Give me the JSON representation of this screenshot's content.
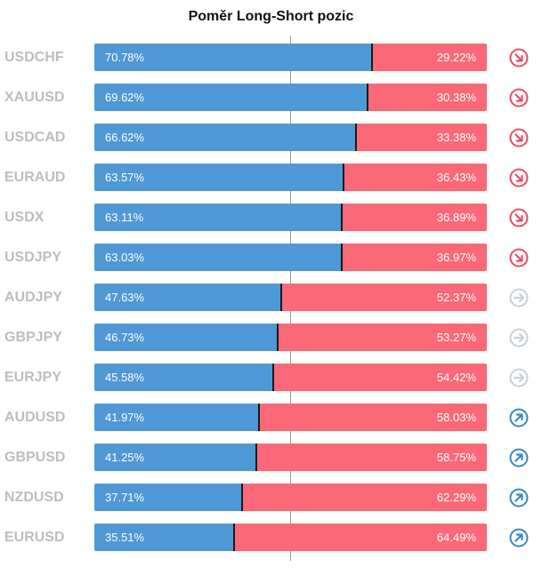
{
  "colors": {
    "long": "#4f98d6",
    "short": "#fb6978",
    "icon_down": "#ef4a60",
    "icon_neutral": "#c9d0d8",
    "icon_up": "#3a88c8"
  },
  "chart_data": {
    "type": "bar",
    "stacked": true,
    "orientation": "horizontal",
    "title": "Poměr Long-Short pozic",
    "xlim": [
      0,
      100
    ],
    "grid": false,
    "categories": [
      "USDCHF",
      "XAUUSD",
      "USDCAD",
      "EURAUD",
      "USDX",
      "USDJPY",
      "AUDJPY",
      "GBPJPY",
      "EURJPY",
      "AUDUSD",
      "GBPUSD",
      "NZDUSD",
      "EURUSD"
    ],
    "series": [
      {
        "values": [
          70.78,
          69.62,
          66.62,
          63.57,
          63.11,
          63.03,
          47.63,
          46.73,
          45.58,
          41.97,
          41.25,
          37.71,
          35.51
        ],
        "labels": [
          "70.78%",
          "69.62%",
          "66.62%",
          "63.57%",
          "63.11%",
          "63.03%",
          "47.63%",
          "46.73%",
          "45.58%",
          "41.97%",
          "41.25%",
          "37.71%",
          "35.51%"
        ]
      },
      {
        "values": [
          29.22,
          30.38,
          33.38,
          36.43,
          36.89,
          36.97,
          52.37,
          53.27,
          54.42,
          58.03,
          58.75,
          62.29,
          64.49
        ],
        "labels": [
          "29.22%",
          "30.38%",
          "33.38%",
          "36.43%",
          "36.89%",
          "36.97%",
          "52.37%",
          "53.27%",
          "54.42%",
          "58.03%",
          "58.75%",
          "62.29%",
          "64.49%"
        ]
      }
    ],
    "trend_icons": [
      "arrow-down-right-icon",
      "arrow-down-right-icon",
      "arrow-down-right-icon",
      "arrow-down-right-icon",
      "arrow-down-right-icon",
      "arrow-down-right-icon",
      "arrow-right-icon",
      "arrow-right-icon",
      "arrow-right-icon",
      "arrow-up-right-icon",
      "arrow-up-right-icon",
      "arrow-up-right-icon",
      "arrow-up-right-icon"
    ]
  }
}
